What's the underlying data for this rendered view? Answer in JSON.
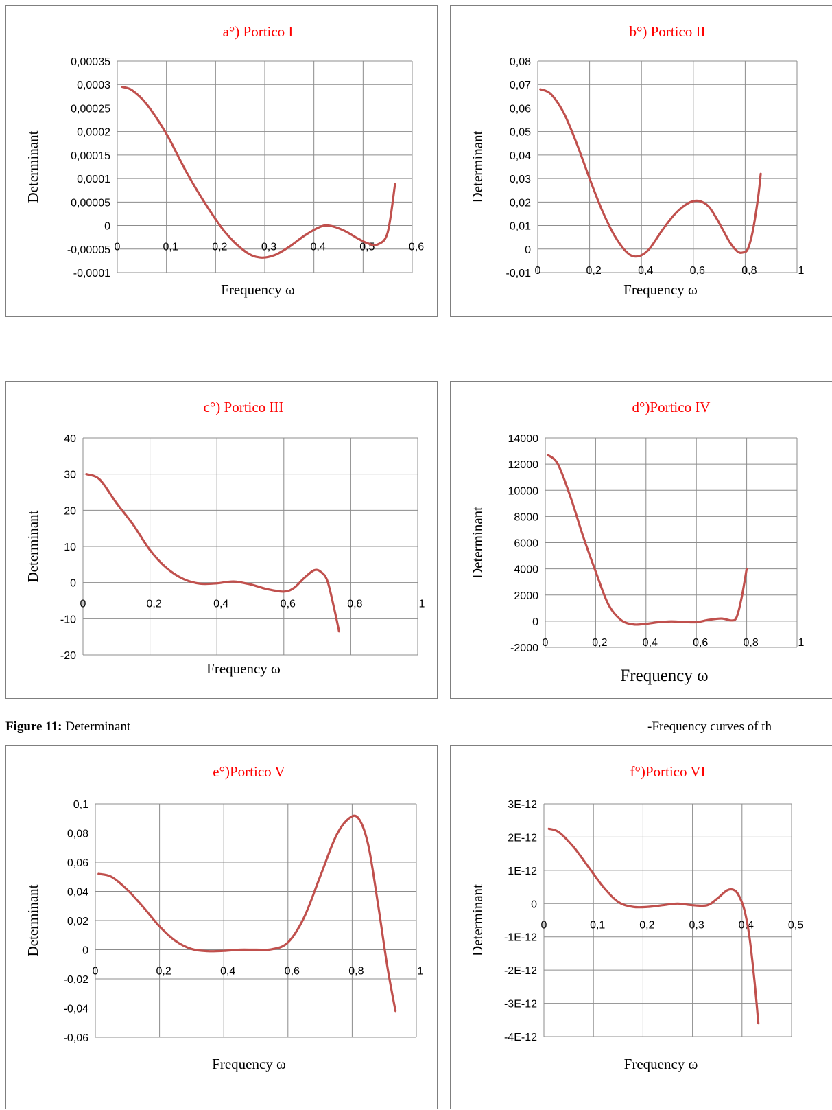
{
  "caption": {
    "label": "Figure 11:",
    "text": "Determinant",
    "right_text": "-Frequency curves of th"
  },
  "chart_data": [
    {
      "type": "line",
      "title": "a°) Portico I",
      "xlabel": "Frequency ω",
      "ylabel": "Determinant",
      "xlim": [
        0,
        0.6
      ],
      "ylim": [
        -0.0001,
        0.00035
      ],
      "x_ticks": [
        "0",
        "0,1",
        "0,2",
        "0,3",
        "0,4",
        "0,5",
        "0,6"
      ],
      "y_ticks": [
        "0,00035",
        "0,0003",
        "0,00025",
        "0,0002",
        "0,00015",
        "0,0001",
        "0,00005",
        "0",
        "-0,00005",
        "-0,0001"
      ],
      "grid": true,
      "x": [
        0.01,
        0.03,
        0.06,
        0.1,
        0.14,
        0.18,
        0.22,
        0.26,
        0.29,
        0.32,
        0.35,
        0.38,
        0.41,
        0.43,
        0.46,
        0.49,
        0.51,
        0.53,
        0.55,
        0.565
      ],
      "y": [
        0.000295,
        0.000288,
        0.000258,
        0.000195,
        0.000115,
        4.5e-05,
        -1.5e-05,
        -5.5e-05,
        -6.8e-05,
        -6.3e-05,
        -4.5e-05,
        -2.2e-05,
        -4e-06,
        0,
        -1e-05,
        -2.8e-05,
        -3.8e-05,
        -4e-05,
        -1.5e-05,
        8.8e-05
      ],
      "y_min": -0.0001,
      "y_max": 0.00035
    },
    {
      "type": "line",
      "title": "b°) Portico II",
      "xlabel": "Frequency ω",
      "ylabel": "Determinant",
      "xlim": [
        0,
        1
      ],
      "ylim": [
        -0.01,
        0.08
      ],
      "x_ticks": [
        "0",
        "0,2",
        "0,4",
        "0,6",
        "0,8",
        "1"
      ],
      "y_ticks": [
        "0,08",
        "0,07",
        "0,06",
        "0,05",
        "0,04",
        "0,03",
        "0,02",
        "0,01",
        "0",
        "-0,01"
      ],
      "grid": true,
      "x": [
        0.01,
        0.05,
        0.1,
        0.15,
        0.2,
        0.25,
        0.3,
        0.35,
        0.39,
        0.43,
        0.48,
        0.53,
        0.58,
        0.62,
        0.66,
        0.7,
        0.74,
        0.77,
        0.79,
        0.81,
        0.83,
        0.85,
        0.86
      ],
      "y": [
        0.068,
        0.066,
        0.058,
        0.045,
        0.03,
        0.016,
        0.005,
        -0.002,
        -0.003,
        0.0,
        0.008,
        0.015,
        0.0195,
        0.0205,
        0.018,
        0.011,
        0.003,
        -0.001,
        -0.0015,
        0.0,
        0.008,
        0.022,
        0.032
      ],
      "y_min": -0.01,
      "y_max": 0.08
    },
    {
      "type": "line",
      "title": "c°) Portico III",
      "xlabel": "Frequency ω",
      "ylabel": "Determinant",
      "xlim": [
        0,
        1
      ],
      "ylim": [
        -20,
        40
      ],
      "x_ticks": [
        "0",
        "0,2",
        "0,4",
        "0,6",
        "0,8",
        "1"
      ],
      "y_ticks": [
        "40",
        "30",
        "20",
        "10",
        "0",
        "-10",
        "-20"
      ],
      "grid": true,
      "x": [
        0.01,
        0.05,
        0.1,
        0.15,
        0.2,
        0.25,
        0.3,
        0.35,
        0.4,
        0.45,
        0.5,
        0.55,
        0.6,
        0.63,
        0.66,
        0.69,
        0.71,
        0.73,
        0.75,
        0.765
      ],
      "y": [
        30,
        28.5,
        22,
        16,
        9,
        4,
        1,
        -0.3,
        -0.2,
        0.3,
        -0.5,
        -1.8,
        -2.5,
        -1.5,
        1.2,
        3.4,
        3.0,
        0.5,
        -7,
        -13.5
      ],
      "y_min": -20,
      "y_max": 40
    },
    {
      "type": "line",
      "title": "d°)Portico IV",
      "xlabel": "Frequency  ω",
      "ylabel": "Determinant",
      "xlim": [
        0,
        1
      ],
      "ylim": [
        -2000,
        14000
      ],
      "x_ticks": [
        "0",
        "0,2",
        "0,4",
        "0,6",
        "0,8",
        "1"
      ],
      "y_ticks": [
        "14000",
        "12000",
        "10000",
        "8000",
        "6000",
        "4000",
        "2000",
        "0",
        "-2000"
      ],
      "grid": true,
      "x": [
        0.01,
        0.05,
        0.1,
        0.15,
        0.2,
        0.25,
        0.3,
        0.35,
        0.4,
        0.45,
        0.5,
        0.55,
        0.6,
        0.65,
        0.7,
        0.74,
        0.76,
        0.78,
        0.8
      ],
      "y": [
        12700,
        12000,
        9500,
        6500,
        3800,
        1300,
        100,
        -250,
        -200,
        -80,
        -20,
        -60,
        -80,
        100,
        200,
        50,
        300,
        1800,
        4000
      ],
      "y_min": -2000,
      "y_max": 14000
    },
    {
      "type": "line",
      "title": "e°)Portico V",
      "xlabel": "Frequency ω",
      "ylabel": "Determinant",
      "xlim": [
        0,
        1
      ],
      "ylim": [
        -0.06,
        0.1
      ],
      "x_ticks": [
        "0",
        "0,2",
        "0,4",
        "0,6",
        "0,8",
        "1"
      ],
      "y_ticks": [
        "0,1",
        "0,08",
        "0,06",
        "0,04",
        "0,02",
        "0",
        "-0,02",
        "-0,04",
        "-0,06"
      ],
      "grid": true,
      "x": [
        0.01,
        0.05,
        0.1,
        0.15,
        0.2,
        0.25,
        0.3,
        0.35,
        0.4,
        0.45,
        0.5,
        0.55,
        0.6,
        0.65,
        0.7,
        0.75,
        0.79,
        0.82,
        0.85,
        0.88,
        0.91,
        0.935
      ],
      "y": [
        0.052,
        0.05,
        0.041,
        0.029,
        0.016,
        0.006,
        0.0005,
        -0.001,
        -0.0008,
        0.0,
        0.0,
        0.0003,
        0.005,
        0.022,
        0.05,
        0.078,
        0.09,
        0.09,
        0.072,
        0.032,
        -0.012,
        -0.042
      ],
      "y_min": -0.06,
      "y_max": 0.1
    },
    {
      "type": "line",
      "title": "f°)Portico VI",
      "xlabel": "Frequency ω",
      "ylabel": "Determinant",
      "xlim": [
        0,
        0.5
      ],
      "ylim": [
        -4e-12,
        3e-12
      ],
      "x_ticks": [
        "0",
        "0,1",
        "0,2",
        "0,3",
        "0,4",
        "0,5"
      ],
      "y_ticks": [
        "3E-12",
        "2E-12",
        "1E-12",
        "0",
        "-1E-12",
        "-2E-12",
        "-3E-12",
        "-4E-12"
      ],
      "grid": true,
      "x": [
        0.01,
        0.03,
        0.06,
        0.09,
        0.12,
        0.15,
        0.18,
        0.21,
        0.24,
        0.27,
        0.3,
        0.33,
        0.35,
        0.37,
        0.385,
        0.395,
        0.405,
        0.415,
        0.425,
        0.433
      ],
      "y": [
        2.25e-12,
        2.15e-12,
        1.7e-12,
        1.1e-12,
        5e-13,
        5e-14,
        -1e-13,
        -1e-13,
        -5e-14,
        0,
        -5e-14,
        -5e-14,
        1.5e-13,
        4e-13,
        4e-13,
        2e-13,
        -2e-13,
        -1e-12,
        -2.3e-12,
        -3.6e-12
      ],
      "y_min": -4e-12,
      "y_max": 3e-12
    }
  ]
}
